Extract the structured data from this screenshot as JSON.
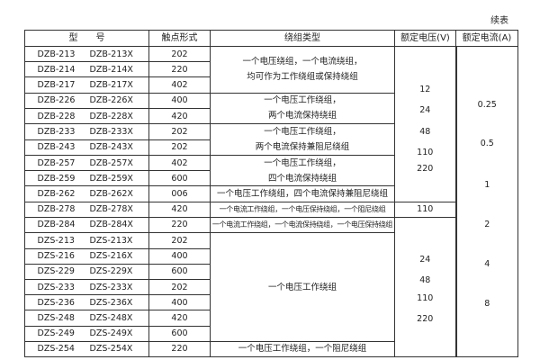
{
  "continued_label": "续表",
  "headers": {
    "model": "型　　号",
    "contact": "触点形式",
    "winding": "绕组类型",
    "voltage": "额定电压(V)",
    "current": "额定电流(A)"
  },
  "rows": [
    {
      "m1": "DZB-213",
      "m2": "DZB-213X",
      "c": "202"
    },
    {
      "m1": "DZB-214",
      "m2": "DZB-214X",
      "c": "220"
    },
    {
      "m1": "DZB-217",
      "m2": "DZB-217X",
      "c": "402"
    },
    {
      "m1": "DZB-226",
      "m2": "DZB-226X",
      "c": "400"
    },
    {
      "m1": "DZB-228",
      "m2": "DZB-228X",
      "c": "420"
    },
    {
      "m1": "DZB-233",
      "m2": "DZB-233X",
      "c": "202"
    },
    {
      "m1": "DZB-243",
      "m2": "DZB-243X",
      "c": "202"
    },
    {
      "m1": "DZB-257",
      "m2": "DZB-257X",
      "c": "402"
    },
    {
      "m1": "DZB-259",
      "m2": "DZB-259X",
      "c": "600"
    },
    {
      "m1": "DZB-262",
      "m2": "DZB-262X",
      "c": "006"
    },
    {
      "m1": "DZB-278",
      "m2": "DZB-278X",
      "c": "420"
    },
    {
      "m1": "DZB-284",
      "m2": "DZB-284X",
      "c": "220"
    },
    {
      "m1": "DZS-213",
      "m2": "DZS-213X",
      "c": "202"
    },
    {
      "m1": "DZS-216",
      "m2": "DZS-216X",
      "c": "400"
    },
    {
      "m1": "DZS-229",
      "m2": "DZS-229X",
      "c": "600"
    },
    {
      "m1": "DZS-233",
      "m2": "DZS-233X",
      "c": "202"
    },
    {
      "m1": "DZS-236",
      "m2": "DZS-236X",
      "c": "400"
    },
    {
      "m1": "DZS-248",
      "m2": "DZS-248X",
      "c": "420"
    },
    {
      "m1": "DZS-249",
      "m2": "DZS-249X",
      "c": "600"
    },
    {
      "m1": "DZS-254",
      "m2": "DZS-254X",
      "c": "220"
    }
  ],
  "windings": {
    "g1": [
      "一个电压绕组，一个电流绕组，",
      "均可作为工作绕组或保持绕组"
    ],
    "g2": [
      "一个电压工作绕组，",
      "两个电流保持绕组"
    ],
    "g3": [
      "一个电压工作绕组，",
      "两个电流保持兼阻尼绕组"
    ],
    "g4": [
      "一个电压工作绕组，",
      "四个电流保持绕组"
    ],
    "g5": "一个电压工作绕组，四个电流保持兼阻尼绕组",
    "g6": "一个电流工作绕组，一个电压保持绕组，一个阻尼绕组",
    "g7": "一个电流工作绕组，一个电流保持绕组，一个电压保持绕组",
    "g8": "一个电压工作绕组",
    "g9": "一个电压工作绕组，一个阻尼绕组"
  },
  "voltage": {
    "dzb": [
      "12",
      "24",
      "48",
      "110",
      "220"
    ],
    "dzb278": "110",
    "dzs": [
      "24",
      "48",
      "110",
      "220"
    ]
  },
  "current": [
    "0.25",
    "0.5",
    "1",
    "2",
    "4",
    "8"
  ]
}
